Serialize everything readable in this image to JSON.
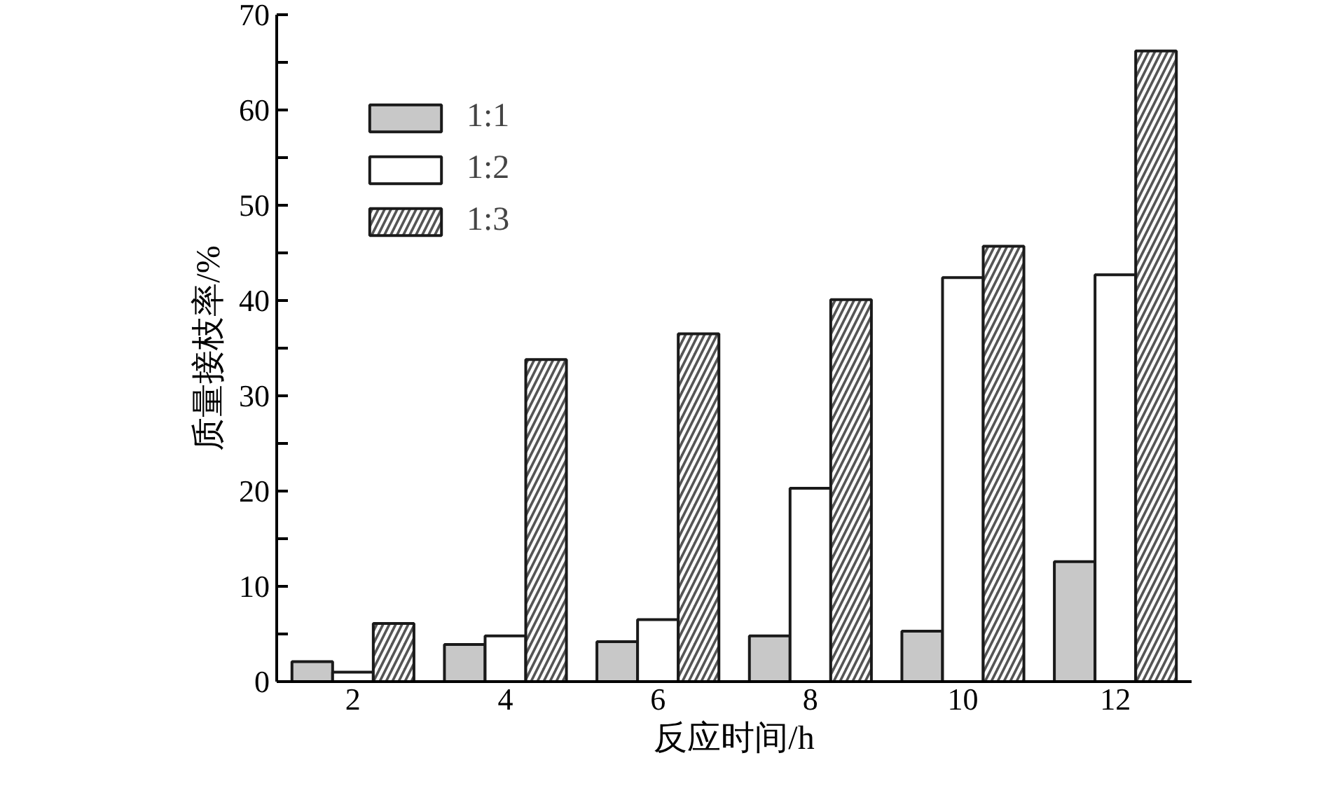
{
  "chart_data": {
    "type": "bar",
    "xlabel": "反应时间/h",
    "ylabel": "质量接枝率/%",
    "categories": [
      "2",
      "4",
      "6",
      "8",
      "10",
      "12"
    ],
    "series": [
      {
        "name": "1:1",
        "color": "#c8c8c8",
        "values": [
          2.1,
          3.9,
          4.2,
          4.8,
          5.3,
          12.6
        ]
      },
      {
        "name": "1:2",
        "color": "#ffffff",
        "values": [
          1.0,
          4.8,
          6.5,
          20.3,
          42.4,
          42.7
        ]
      },
      {
        "name": "1:3",
        "color": "#555555",
        "values": [
          6.1,
          33.8,
          36.5,
          40.1,
          45.7,
          66.2
        ]
      }
    ],
    "ylim": [
      0,
      70
    ],
    "yticks": [
      0,
      {
        "value": 5,
        "label": null
      },
      10,
      {
        "value": 15,
        "label": null
      },
      20,
      {
        "value": 25,
        "label": null
      },
      30,
      {
        "value": 35,
        "label": null
      },
      40,
      {
        "value": 45,
        "label": null
      },
      50,
      {
        "value": 55,
        "label": null
      },
      60,
      {
        "value": 65,
        "label": null
      },
      70
    ],
    "grid": false,
    "legend": "top left"
  }
}
